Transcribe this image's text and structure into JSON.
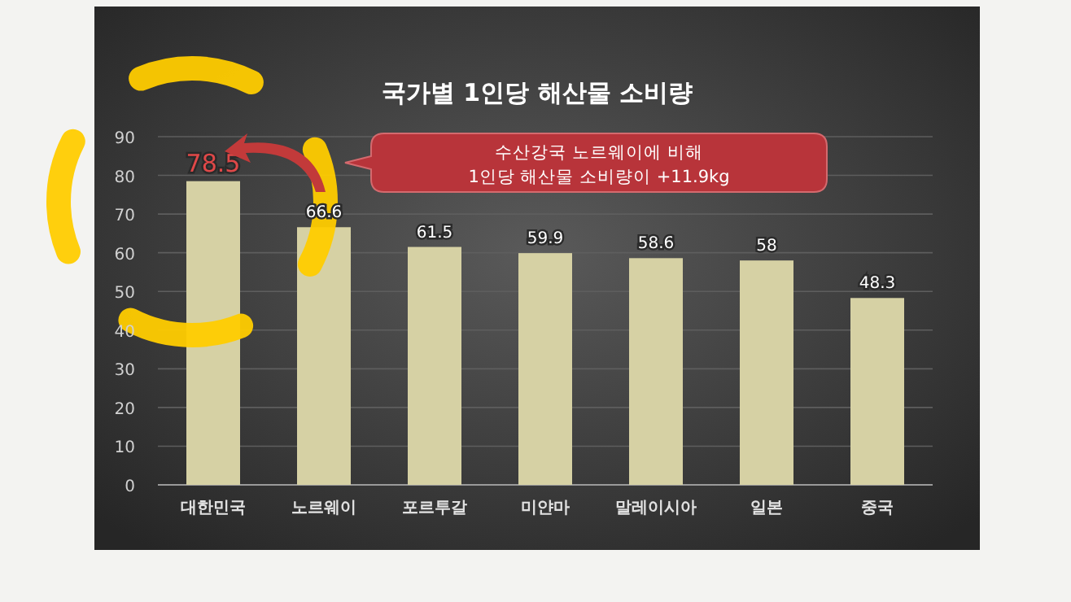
{
  "chart_data": {
    "type": "bar",
    "title": "국가별 1인당 해산물 소비량",
    "categories": [
      "대한민국",
      "노르웨이",
      "포르투갈",
      "미얀마",
      "말레이시아",
      "일본",
      "중국"
    ],
    "values": [
      78.5,
      66.6,
      61.5,
      59.9,
      58.6,
      58,
      48.3
    ],
    "color": "#d6d1a4",
    "data_labels": true,
    "ylim": [
      0,
      90
    ],
    "yticks": [
      0,
      10,
      20,
      30,
      40,
      50,
      60,
      70,
      80,
      90
    ],
    "grid": "y",
    "annotations": [
      "수산강국 노르웨이에 비해\n1인당 해산물 소비량이 +11.9kg"
    ]
  }
}
